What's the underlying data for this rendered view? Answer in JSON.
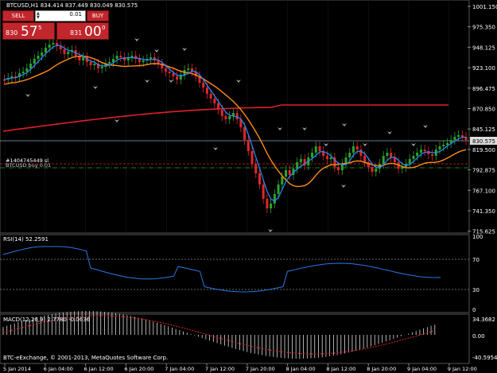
{
  "header": {
    "title": "BTCUSD,H1",
    "ohlc": "834.414 837.449 830.049 830.575"
  },
  "trade_panel": {
    "sell_label": "SELL",
    "buy_label": "BUY",
    "lot_value": "0.01",
    "sell_small": "830",
    "sell_big": "57",
    "sell_sup": "5",
    "buy_small": "831",
    "buy_big": "00",
    "buy_sup": "0"
  },
  "main_chart": {
    "price_labels": [
      "1001.150",
      "975.350",
      "948.125",
      "923.100",
      "896.475",
      "870.850",
      "845.125",
      "819.500",
      "792.875",
      "767.100",
      "741.350",
      "715.625"
    ],
    "current_price": "830.575",
    "order_label": "#1404745449 sl",
    "order_label_2": "BTCUSD buy 0.01",
    "colors": {
      "bull": "#2aa52a",
      "bear": "#e0272b",
      "ma_fast": "#2a8cff",
      "ma_mid": "#ff8c1a",
      "ma_slow": "#e0202a",
      "grid": "#3a3a3a"
    }
  },
  "rsi": {
    "label": "RSI(14) 52.2591",
    "levels": [
      "100",
      "70",
      "30",
      "0"
    ]
  },
  "macd": {
    "label": "MACD(12,26,9) 2.7780 -0.0636",
    "levels": [
      "34.3682",
      "0.00",
      "-40.5954"
    ]
  },
  "time_axis": [
    "5 Jan 2014",
    "6 Jan 04:00",
    "6 Jan 12:00",
    "6 Jan 20:00",
    "7 Jan 04:00",
    "7 Jan 12:00",
    "7 Jan 20:00",
    "8 Jan 04:00",
    "8 Jan 12:00",
    "8 Jan 20:00",
    "9 Jan 04:00",
    "9 Jan 12:00"
  ],
  "copyright": "BTC-eExchange, © 2001-2013, MetaQuotes Software Corp."
}
